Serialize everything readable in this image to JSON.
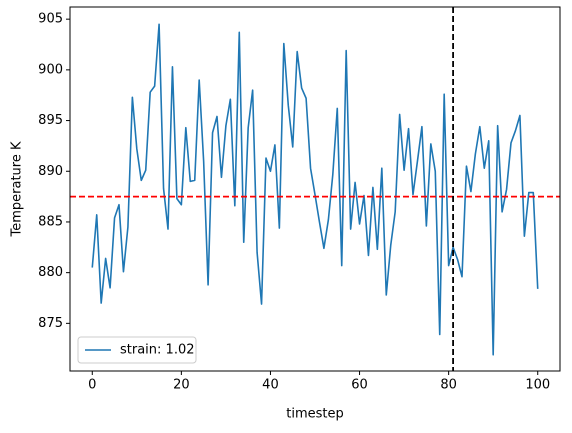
{
  "chart_data": {
    "type": "line",
    "xlabel": "timestep",
    "ylabel": "Temperature K",
    "x": [
      0,
      1,
      2,
      3,
      4,
      5,
      6,
      7,
      8,
      9,
      10,
      11,
      12,
      13,
      14,
      15,
      16,
      17,
      18,
      19,
      20,
      21,
      22,
      23,
      24,
      25,
      26,
      27,
      28,
      29,
      30,
      31,
      32,
      33,
      34,
      35,
      36,
      37,
      38,
      39,
      40,
      41,
      42,
      43,
      44,
      45,
      46,
      47,
      48,
      49,
      50,
      51,
      52,
      53,
      54,
      55,
      56,
      57,
      58,
      59,
      60,
      61,
      62,
      63,
      64,
      65,
      66,
      67,
      68,
      69,
      70,
      71,
      72,
      73,
      74,
      75,
      76,
      77,
      78,
      79,
      80,
      81,
      82,
      83,
      84,
      85,
      86,
      87,
      88,
      89,
      90,
      91,
      92,
      93,
      94,
      95,
      96,
      97,
      98,
      99,
      100
    ],
    "series": [
      {
        "name": "strain: 1.02",
        "color": "#1f77b4",
        "values": [
          880.5,
          885.7,
          877,
          881.4,
          878.5,
          885.4,
          886.7,
          880.1,
          884.5,
          897.3,
          892.2,
          889.1,
          890.1,
          897.8,
          898.4,
          904.5,
          888.3,
          884.3,
          900.3,
          887.3,
          886.7,
          894.3,
          889,
          889.1,
          899,
          891,
          878.8,
          893.8,
          895.4,
          889.4,
          894.5,
          897.1,
          886.6,
          903.7,
          883,
          894.3,
          898,
          882,
          876.9,
          891.3,
          890,
          892.6,
          884.4,
          902.6,
          896.5,
          892.4,
          901.8,
          898.2,
          897.2,
          890.3,
          887.7,
          885,
          882.4,
          885.2,
          889.7,
          896.2,
          880.7,
          901.9,
          884.3,
          888.9,
          884.8,
          887.6,
          881.7,
          888.4,
          882.3,
          890.3,
          877.8,
          882.7,
          886,
          895.6,
          890.1,
          894.2,
          887.7,
          891,
          894.4,
          884.6,
          892.7,
          890,
          873.9,
          897.6,
          880.7,
          882.5,
          881.3,
          879.6,
          890.5,
          888,
          891.7,
          894.4,
          890.3,
          893,
          871.9,
          894.5,
          886,
          888.2,
          892.8,
          894,
          895.5,
          883.6,
          887.9,
          887.9,
          878.4
        ]
      }
    ],
    "hlines": [
      {
        "value": 887.5,
        "color": "#ff0000"
      }
    ],
    "vlines": [
      {
        "value": 81,
        "color": "#000000"
      }
    ],
    "xlim": [
      -5,
      105
    ],
    "xticks": [
      0,
      20,
      40,
      60,
      80,
      100
    ],
    "ylim": [
      870.3,
      906.2
    ],
    "yticks": [
      875,
      880,
      885,
      890,
      895,
      900,
      905
    ],
    "grid": false,
    "legend": "lower left"
  }
}
